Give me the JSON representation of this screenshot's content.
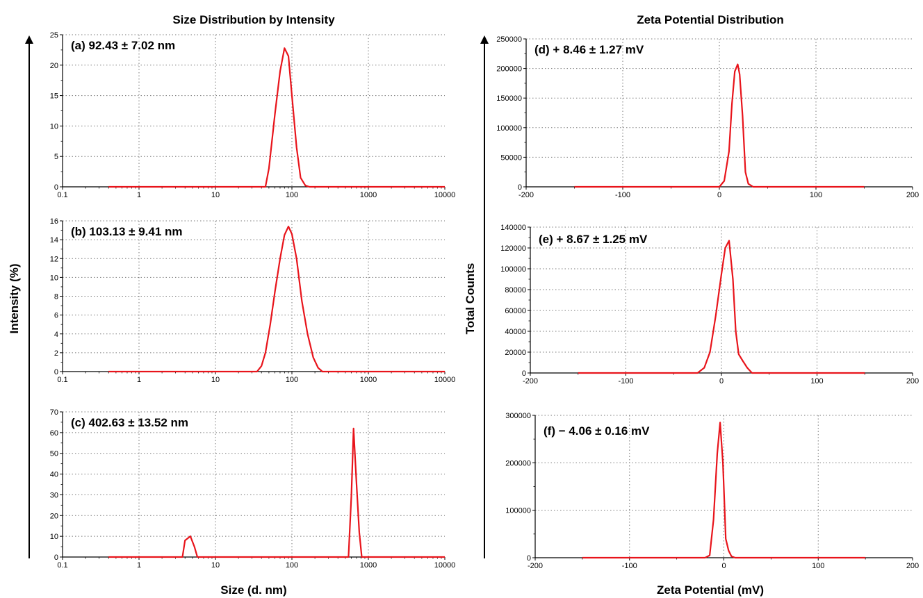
{
  "titles": {
    "left": "Size Distribution by Intensity",
    "right": "Zeta Potential Distribution"
  },
  "labels": {
    "left_y": "Intensity (%)",
    "left_x": "Size (d. nm)",
    "right_y": "Total Counts",
    "right_x": "Zeta Potential (mV)"
  },
  "colors": {
    "series": "#e8141b",
    "grid": "#7a7a7a",
    "axis": "#000000"
  },
  "chart_data": [
    {
      "type": "line",
      "annotation": "(a) 92.43 ± 7.02 nm",
      "xscale": "log",
      "xlim": [
        0.1,
        10000
      ],
      "ylim": [
        0,
        25
      ],
      "xticks": [
        0.1,
        1,
        10,
        100,
        1000,
        10000
      ],
      "xtick_labels": [
        "0.1",
        "1",
        "10",
        "100",
        "1000",
        "10000"
      ],
      "yticks": [
        0,
        5,
        10,
        15,
        20,
        25
      ],
      "ytick_labels": [
        "0",
        "5",
        "10",
        "15",
        "20",
        "25"
      ],
      "x": [
        0.4,
        45,
        50,
        60,
        70,
        80,
        90,
        100,
        115,
        130,
        150,
        170,
        10000
      ],
      "y": [
        0,
        0,
        3,
        12,
        19,
        22.8,
        21.5,
        15,
        6.5,
        1.5,
        0.2,
        0,
        0
      ]
    },
    {
      "type": "line",
      "annotation": "(b) 103.13 ± 9.41 nm",
      "xscale": "log",
      "xlim": [
        0.1,
        10000
      ],
      "ylim": [
        0,
        16
      ],
      "xticks": [
        0.1,
        1,
        10,
        100,
        1000,
        10000
      ],
      "xtick_labels": [
        "0.1",
        "1",
        "10",
        "100",
        "1000",
        "10000"
      ],
      "yticks": [
        0,
        2,
        4,
        6,
        8,
        10,
        12,
        14,
        16
      ],
      "ytick_labels": [
        "0",
        "2",
        "4",
        "6",
        "8",
        "10",
        "12",
        "14",
        "16"
      ],
      "x": [
        0.4,
        35,
        40,
        45,
        52,
        60,
        70,
        80,
        90,
        100,
        115,
        135,
        160,
        190,
        220,
        250,
        10000
      ],
      "y": [
        0,
        0,
        0.6,
        2,
        5,
        8.5,
        12,
        14.5,
        15.4,
        14.6,
        12,
        7.5,
        4,
        1.5,
        0.4,
        0,
        0
      ]
    },
    {
      "type": "line",
      "annotation": "(c) 402.63 ± 13.52 nm",
      "xscale": "log",
      "xlim": [
        0.1,
        10000
      ],
      "ylim": [
        0,
        70
      ],
      "xticks": [
        0.1,
        1,
        10,
        100,
        1000,
        10000
      ],
      "xtick_labels": [
        "0.1",
        "1",
        "10",
        "100",
        "1000",
        "10000"
      ],
      "yticks": [
        0,
        10,
        20,
        30,
        40,
        50,
        60,
        70
      ],
      "ytick_labels": [
        "0",
        "10",
        "20",
        "30",
        "40",
        "50",
        "60",
        "70"
      ],
      "x": [
        0.4,
        3.7,
        4.0,
        4.7,
        5.3,
        5.8,
        550,
        600,
        640,
        700,
        760,
        820,
        10000
      ],
      "y": [
        0,
        0,
        8,
        10,
        5,
        0,
        0,
        30,
        62,
        35,
        12,
        0,
        0
      ]
    },
    {
      "type": "line",
      "annotation": "(d) + 8.46 ± 1.27 mV",
      "xscale": "linear",
      "xlim": [
        -200,
        200
      ],
      "ylim": [
        0,
        250000
      ],
      "xticks": [
        -200,
        -100,
        0,
        100,
        200
      ],
      "xtick_labels": [
        "-200",
        "-100",
        "0",
        "100",
        "200"
      ],
      "yticks": [
        0,
        50000,
        100000,
        150000,
        200000,
        250000
      ],
      "ytick_labels": [
        "0",
        "50000",
        "100000",
        "150000",
        "200000",
        "250000"
      ],
      "x": [
        -150,
        0,
        5,
        10,
        13,
        16,
        19,
        21,
        24,
        27,
        30,
        35,
        150
      ],
      "y": [
        0,
        0,
        10000,
        60000,
        140000,
        195000,
        207000,
        190000,
        120000,
        25000,
        5000,
        0,
        0
      ]
    },
    {
      "type": "line",
      "annotation": "(e) + 8.67 ± 1.25 mV",
      "xscale": "linear",
      "xlim": [
        -200,
        200
      ],
      "ylim": [
        0,
        140000
      ],
      "xticks": [
        -200,
        -100,
        0,
        100,
        200
      ],
      "xtick_labels": [
        "-200",
        "-100",
        "0",
        "100",
        "200"
      ],
      "yticks": [
        0,
        20000,
        40000,
        60000,
        80000,
        100000,
        120000,
        140000
      ],
      "ytick_labels": [
        "0",
        "20000",
        "40000",
        "60000",
        "80000",
        "100000",
        "120000",
        "140000"
      ],
      "x": [
        -150,
        -25,
        -18,
        -12,
        -6,
        0,
        4,
        8,
        12,
        15,
        18,
        22,
        27,
        32,
        150
      ],
      "y": [
        0,
        0,
        5000,
        20000,
        55000,
        95000,
        120000,
        127000,
        90000,
        40000,
        18000,
        12000,
        5000,
        0,
        0
      ]
    },
    {
      "type": "line",
      "annotation": "(f) − 4.06 ± 0.16 mV",
      "xscale": "linear",
      "xlim": [
        -200,
        200
      ],
      "ylim": [
        0,
        300000
      ],
      "xticks": [
        -200,
        -100,
        0,
        100,
        200
      ],
      "xtick_labels": [
        "-200",
        "-100",
        "0",
        "100",
        "200"
      ],
      "yticks": [
        0,
        100000,
        200000,
        300000
      ],
      "ytick_labels": [
        "0",
        "100000",
        "200000",
        "300000"
      ],
      "x": [
        -150,
        -20,
        -15,
        -11,
        -7,
        -4,
        -1,
        2,
        5,
        8,
        12,
        150
      ],
      "y": [
        0,
        0,
        5000,
        80000,
        220000,
        285000,
        200000,
        40000,
        15000,
        3000,
        0,
        0
      ]
    }
  ]
}
